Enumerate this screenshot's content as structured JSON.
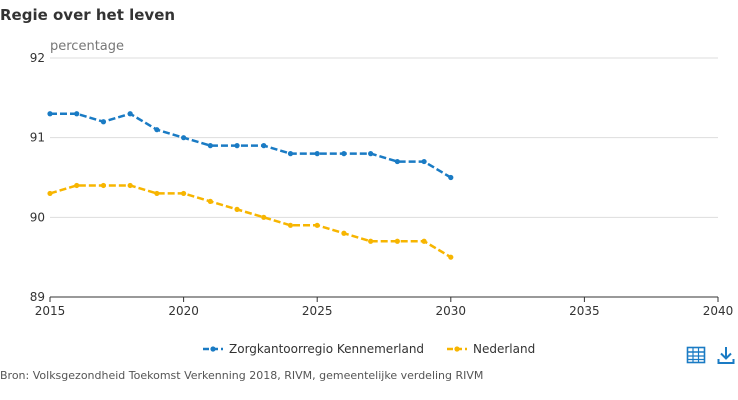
{
  "title": "Regie over het leven",
  "source": "Bron: Volksgezondheid Toekomst Verkenning 2018, RIVM, gemeentelijke verdeling RIVM",
  "tools": {
    "table_icon": "table-icon",
    "download_icon": "download-icon"
  },
  "chart_data": {
    "type": "line",
    "title": "Regie over het leven",
    "ylabel": "percentage",
    "xlabel": "",
    "xlim": [
      2015,
      2040
    ],
    "ylim": [
      89,
      92
    ],
    "x_ticks": [
      2015,
      2020,
      2025,
      2030,
      2035,
      2040
    ],
    "y_ticks": [
      89,
      90,
      91,
      92
    ],
    "grid": true,
    "legend_position": "bottom",
    "x": [
      2015,
      2016,
      2017,
      2018,
      2019,
      2020,
      2021,
      2022,
      2023,
      2024,
      2025,
      2026,
      2027,
      2028,
      2029,
      2030
    ],
    "series": [
      {
        "name": "Zorgkantoorregio Kennemerland",
        "color": "#1a7bc4",
        "values": [
          91.3,
          91.3,
          91.2,
          91.3,
          91.1,
          91.0,
          90.9,
          90.9,
          90.9,
          90.8,
          90.8,
          90.8,
          90.8,
          90.7,
          90.7,
          90.5
        ]
      },
      {
        "name": "Nederland",
        "color": "#f7b500",
        "values": [
          90.3,
          90.4,
          90.4,
          90.4,
          90.3,
          90.3,
          90.2,
          90.1,
          90.0,
          89.9,
          89.9,
          89.8,
          89.7,
          89.7,
          89.7,
          89.5
        ]
      }
    ]
  }
}
